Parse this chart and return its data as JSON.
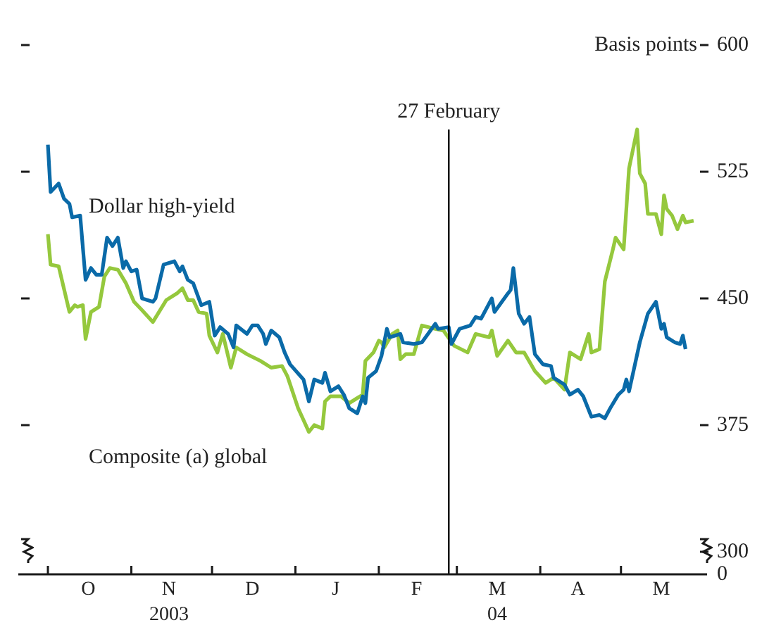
{
  "chart_data": {
    "type": "line",
    "y2label": "Basis points",
    "legend": false,
    "marker": "none",
    "line_style": "solid",
    "xlim": [
      "2003-09-20",
      "2004-06-02"
    ],
    "xticks": [
      {
        "value": "2003-10-01",
        "label": null
      },
      {
        "value": "2003-11-01",
        "label": null
      },
      {
        "value": "2003-12-01",
        "label": null
      },
      {
        "value": "2004-01-01",
        "label": null
      },
      {
        "value": "2004-02-01",
        "label": null
      },
      {
        "value": "2004-03-01",
        "label": null
      },
      {
        "value": "2004-04-01",
        "label": null
      },
      {
        "value": "2004-05-01",
        "label": null
      },
      {
        "value": "2003-10-16",
        "label": "O"
      },
      {
        "value": "2003-11-15",
        "label": "N\n2003"
      },
      {
        "value": "2003-12-16",
        "label": "D"
      },
      {
        "value": "2004-01-16",
        "label": "J"
      },
      {
        "value": "2004-02-15",
        "label": "F"
      },
      {
        "value": "2004-03-16",
        "label": "M\n04"
      },
      {
        "value": "2004-04-15",
        "label": "A"
      },
      {
        "value": "2004-05-16",
        "label": "M"
      }
    ],
    "y2lim": [
      300,
      600
    ],
    "y2ticks": [
      300,
      375,
      450,
      525,
      600
    ],
    "ref_lines": [
      {
        "axis": "x",
        "value": "2004-02-27",
        "label": "27 February",
        "color": "#000000"
      }
    ],
    "annotations": [
      "0"
    ],
    "series": [
      {
        "name": "Dollar high-yield",
        "color": "#0a6aa8",
        "axis": "y2",
        "x": [
          "2003-10-01",
          "2003-10-02",
          "2003-10-05",
          "2003-10-07",
          "2003-10-09",
          "2003-10-10",
          "2003-10-13",
          "2003-10-15",
          "2003-10-17",
          "2003-10-19",
          "2003-10-21",
          "2003-10-23",
          "2003-10-25",
          "2003-10-27",
          "2003-10-29",
          "2003-10-30",
          "2003-11-01",
          "2003-11-03",
          "2003-11-05",
          "2003-11-09",
          "2003-11-10",
          "2003-11-13",
          "2003-11-17",
          "2003-11-19",
          "2003-11-20",
          "2003-11-22",
          "2003-11-24",
          "2003-11-27",
          "2003-11-30",
          "2003-12-02",
          "2003-12-04",
          "2003-12-07",
          "2003-12-09",
          "2003-12-10",
          "2003-12-14",
          "2003-12-16",
          "2003-12-18",
          "2003-12-20",
          "2003-12-21",
          "2003-12-23",
          "2003-12-26",
          "2003-12-28",
          "2003-12-30",
          "2004-01-04",
          "2004-01-06",
          "2004-01-08",
          "2004-01-11",
          "2004-01-12",
          "2004-01-14",
          "2004-01-17",
          "2004-01-19",
          "2004-01-21",
          "2004-01-24",
          "2004-01-26",
          "2004-01-27",
          "2004-01-28",
          "2004-01-31",
          "2004-02-02",
          "2004-02-04",
          "2004-02-05",
          "2004-02-09",
          "2004-02-10",
          "2004-02-14",
          "2004-02-17",
          "2004-02-22",
          "2004-02-23",
          "2004-02-27",
          "2004-02-28",
          "2004-03-02",
          "2004-03-06",
          "2004-03-08",
          "2004-03-10",
          "2004-03-14",
          "2004-03-15",
          "2004-03-20",
          "2004-03-21",
          "2004-03-22",
          "2004-03-24",
          "2004-03-26",
          "2004-03-28",
          "2004-03-30",
          "2004-04-02",
          "2004-04-05",
          "2004-04-06",
          "2004-04-10",
          "2004-04-12",
          "2004-04-15",
          "2004-04-17",
          "2004-04-20",
          "2004-04-23",
          "2004-04-25",
          "2004-04-27",
          "2004-04-30",
          "2004-05-02",
          "2004-05-03",
          "2004-05-04",
          "2004-05-08",
          "2004-05-11",
          "2004-05-14",
          "2004-05-16",
          "2004-05-17",
          "2004-05-18",
          "2004-05-21",
          "2004-05-23",
          "2004-05-24",
          "2004-05-25"
        ],
        "values": [
          541,
          513,
          518,
          509,
          506,
          498,
          499,
          461,
          468,
          464,
          464,
          486,
          481,
          486,
          468,
          472,
          466,
          467,
          450,
          448,
          450,
          470,
          472,
          466,
          469,
          461,
          459,
          446,
          448,
          428,
          433,
          429,
          421,
          434,
          429,
          434,
          434,
          429,
          423,
          431,
          427,
          418,
          411,
          402,
          389,
          402,
          400,
          406,
          395,
          398,
          393,
          385,
          382,
          392,
          388,
          403,
          407,
          416,
          432,
          427,
          429,
          424,
          423,
          424,
          435,
          432,
          433,
          423,
          432,
          434,
          439,
          438,
          450,
          442,
          453,
          455,
          468,
          441,
          435,
          439,
          417,
          411,
          410,
          403,
          399,
          393,
          396,
          392,
          380,
          381,
          379,
          385,
          393,
          396,
          402,
          395,
          424,
          441,
          448,
          432,
          435,
          427,
          424,
          423,
          428,
          420
        ]
      },
      {
        "name": "Composite (a) global",
        "color": "#95c83d",
        "axis": "y2",
        "x": [
          "2003-10-01",
          "2003-10-02",
          "2003-10-05",
          "2003-10-09",
          "2003-10-11",
          "2003-10-12",
          "2003-10-14",
          "2003-10-15",
          "2003-10-17",
          "2003-10-20",
          "2003-10-22",
          "2003-10-24",
          "2003-10-27",
          "2003-10-30",
          "2003-11-02",
          "2003-11-05",
          "2003-11-09",
          "2003-11-14",
          "2003-11-18",
          "2003-11-20",
          "2003-11-22",
          "2003-11-24",
          "2003-11-26",
          "2003-11-29",
          "2003-11-30",
          "2003-12-03",
          "2003-12-05",
          "2003-12-08",
          "2003-12-10",
          "2003-12-14",
          "2003-12-19",
          "2003-12-23",
          "2003-12-27",
          "2003-12-29",
          "2004-01-02",
          "2004-01-06",
          "2004-01-08",
          "2004-01-11",
          "2004-01-12",
          "2004-01-14",
          "2004-01-18",
          "2004-01-21",
          "2004-01-26",
          "2004-01-27",
          "2004-01-30",
          "2004-02-01",
          "2004-02-02",
          "2004-02-03",
          "2004-02-06",
          "2004-02-08",
          "2004-02-09",
          "2004-02-11",
          "2004-02-14",
          "2004-02-17",
          "2004-02-22",
          "2004-02-25",
          "2004-02-29",
          "2004-03-05",
          "2004-03-08",
          "2004-03-13",
          "2004-03-14",
          "2004-03-16",
          "2004-03-20",
          "2004-03-23",
          "2004-03-26",
          "2004-03-30",
          "2004-04-03",
          "2004-04-06",
          "2004-04-10",
          "2004-04-12",
          "2004-04-16",
          "2004-04-19",
          "2004-04-20",
          "2004-04-23",
          "2004-04-25",
          "2004-04-28",
          "2004-04-29",
          "2004-05-02",
          "2004-05-04",
          "2004-05-07",
          "2004-05-08",
          "2004-05-10",
          "2004-05-11",
          "2004-05-14",
          "2004-05-16",
          "2004-05-17",
          "2004-05-18",
          "2004-05-20",
          "2004-05-22",
          "2004-05-24",
          "2004-05-25",
          "2004-05-28"
        ],
        "values": [
          488,
          470,
          469,
          442,
          446,
          445,
          446,
          426,
          442,
          445,
          463,
          468,
          467,
          459,
          448,
          443,
          436,
          449,
          453,
          456,
          449,
          449,
          442,
          441,
          428,
          418,
          429,
          409,
          421,
          417,
          413,
          409,
          410,
          404,
          385,
          371,
          375,
          373,
          389,
          392,
          392,
          388,
          393,
          413,
          418,
          425,
          424,
          421,
          429,
          431,
          414,
          417,
          417,
          434,
          432,
          431,
          422,
          418,
          429,
          427,
          431,
          416,
          425,
          418,
          418,
          407,
          400,
          403,
          396,
          418,
          414,
          429,
          418,
          420,
          460,
          479,
          486,
          479,
          527,
          550,
          524,
          518,
          500,
          500,
          488,
          511,
          503,
          499,
          491,
          499,
          495,
          496
        ]
      }
    ]
  }
}
